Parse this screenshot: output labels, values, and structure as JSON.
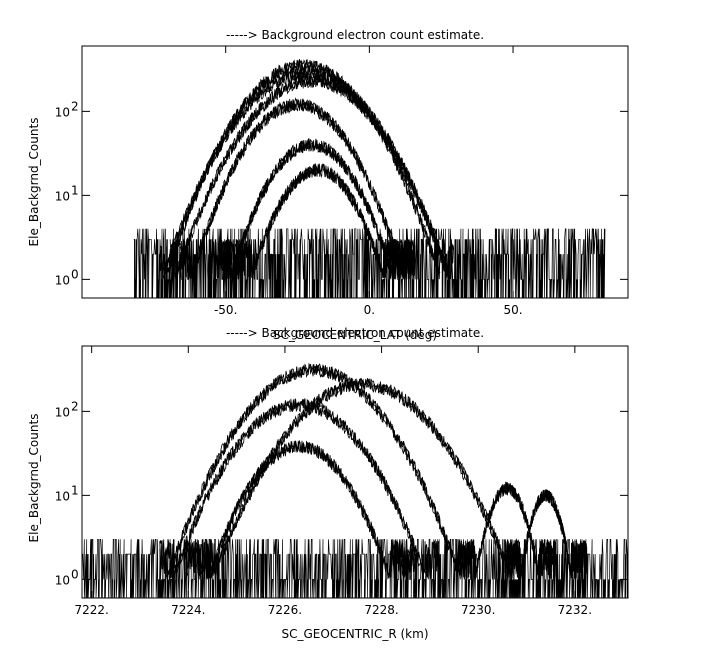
{
  "chart_data": [
    {
      "type": "line",
      "title": "-----> Background electron count estimate.",
      "xlabel": "SC_GEOCENTRIC_LAT (deg)",
      "ylabel": "Ele_Backgrnd_Counts",
      "xlim": [
        -100,
        90
      ],
      "ylim": [
        0.6,
        600
      ],
      "yscale": "log",
      "x_ticks": [
        -50,
        0,
        50
      ],
      "x_tick_labels": [
        "-50.",
        "0.",
        "50."
      ],
      "y_ticks": [
        1,
        10,
        100
      ],
      "y_tick_labels": [
        "10",
        "10",
        "10"
      ],
      "y_tick_exponents": [
        "0",
        "1",
        "2"
      ],
      "grid": false,
      "legend": "none",
      "color": "#000000",
      "x_data_range": [
        -82,
        82
      ],
      "arcs": [
        {
          "peak_x": -23,
          "peak_y": 350,
          "width": 28
        },
        {
          "peak_x": -22,
          "peak_y": 280,
          "width": 30
        },
        {
          "peak_x": -20,
          "peak_y": 230,
          "width": 29
        },
        {
          "peak_x": -25,
          "peak_y": 120,
          "width": 24
        },
        {
          "peak_x": -20,
          "peak_y": 40,
          "width": 21
        },
        {
          "peak_x": -18,
          "peak_y": 20,
          "width": 19
        }
      ],
      "baseline_levels": [
        1,
        2,
        3,
        4
      ]
    },
    {
      "type": "line",
      "title": "-----> Background electron count estimate.",
      "xlabel": "SC_GEOCENTRIC_R (km)",
      "ylabel": "Ele_Backgrnd_Counts",
      "xlim": [
        7221.8,
        7233.1
      ],
      "ylim": [
        0.6,
        600
      ],
      "yscale": "log",
      "x_ticks": [
        7222,
        7224,
        7226,
        7228,
        7230,
        7232
      ],
      "x_tick_labels": [
        "7222.",
        "7224.",
        "7226.",
        "7228.",
        "7230.",
        "7232."
      ],
      "y_ticks": [
        1,
        10,
        100
      ],
      "y_tick_labels": [
        "10",
        "10",
        "10"
      ],
      "y_tick_exponents": [
        "0",
        "1",
        "2"
      ],
      "grid": false,
      "legend": "none",
      "color": "#000000",
      "x_data_range": [
        7221.8,
        7233.1
      ],
      "arcs": [
        {
          "peak_x": 7226.6,
          "peak_y": 310,
          "width": 1.8
        },
        {
          "peak_x": 7227.6,
          "peak_y": 210,
          "width": 1.9
        },
        {
          "peak_x": 7226.3,
          "peak_y": 120,
          "width": 1.7
        },
        {
          "peak_x": 7226.3,
          "peak_y": 38,
          "width": 1.4
        }
      ],
      "secondary_bumps": [
        {
          "peak_x": 7230.6,
          "peak_y": 12,
          "width": 0.6
        },
        {
          "peak_x": 7231.4,
          "peak_y": 10,
          "width": 0.5
        }
      ],
      "baseline_levels": [
        1,
        2,
        3
      ]
    }
  ]
}
